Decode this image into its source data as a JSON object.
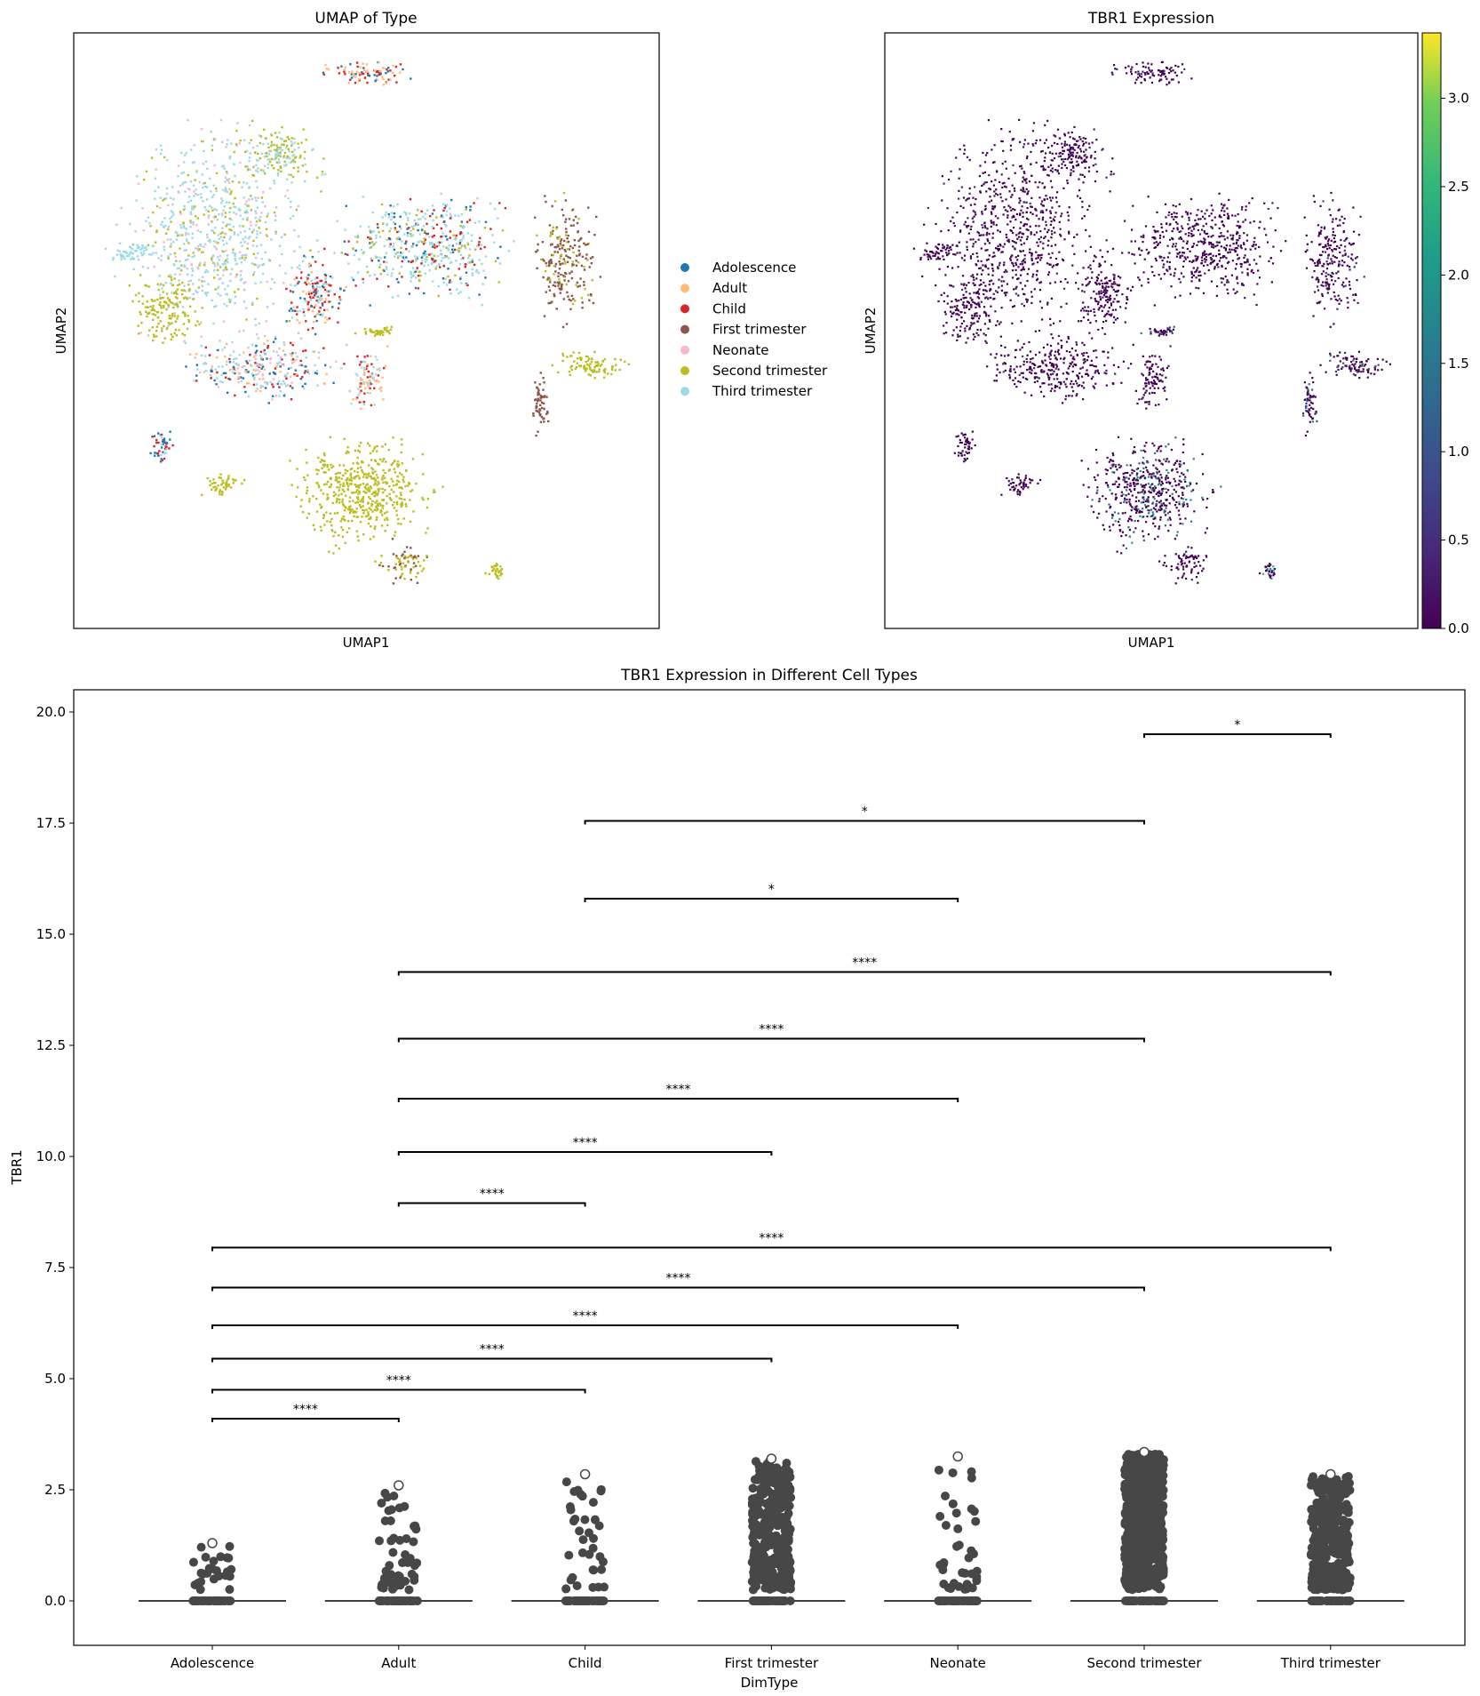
{
  "umap_type": {
    "title": "UMAP of Type",
    "xlabel": "UMAP1",
    "ylabel": "UMAP2",
    "legend": [
      {
        "label": "Adolescence",
        "color": "#1f77b4"
      },
      {
        "label": "Adult",
        "color": "#ffbb78"
      },
      {
        "label": "Child",
        "color": "#d62728"
      },
      {
        "label": "First trimester",
        "color": "#8c564b"
      },
      {
        "label": "Neonate",
        "color": "#f7b6d2"
      },
      {
        "label": "Second trimester",
        "color": "#bcbd22"
      },
      {
        "label": "Third trimester",
        "color": "#9edae5"
      }
    ]
  },
  "umap_expr": {
    "title": "TBR1 Expression",
    "xlabel": "UMAP1",
    "ylabel": "UMAP2",
    "colorbar": {
      "min": 0,
      "max": 3.37,
      "ticks": [
        "0.0",
        "0.5",
        "1.0",
        "1.5",
        "2.0",
        "2.5",
        "3.0"
      ],
      "tick_values": [
        0,
        0.5,
        1,
        1.5,
        2,
        2.5,
        3
      ]
    }
  },
  "chart_data": {
    "type": "box",
    "title": "TBR1 Expression in Different Cell Types",
    "xlabel": "DimType",
    "ylabel": "TBR1",
    "ylim": [
      -1,
      20.5
    ],
    "yticks": [
      "0.0",
      "2.5",
      "5.0",
      "7.5",
      "10.0",
      "12.5",
      "15.0",
      "17.5",
      "20.0"
    ],
    "ytick_values": [
      0,
      2.5,
      5,
      7.5,
      10,
      12.5,
      15,
      17.5,
      20
    ],
    "categories": [
      "Adolescence",
      "Adult",
      "Child",
      "First trimester",
      "Neonate",
      "Second trimester",
      "Third trimester"
    ],
    "median": [
      0,
      0,
      0,
      0,
      0,
      0,
      0
    ],
    "max": [
      1.3,
      2.6,
      2.85,
      3.2,
      3.25,
      3.35,
      2.85
    ],
    "brackets": [
      {
        "from": 0,
        "to": 1,
        "y": 4.1,
        "label": "****"
      },
      {
        "from": 0,
        "to": 2,
        "y": 4.75,
        "label": "****"
      },
      {
        "from": 0,
        "to": 3,
        "y": 5.45,
        "label": "****"
      },
      {
        "from": 0,
        "to": 4,
        "y": 6.2,
        "label": "****"
      },
      {
        "from": 0,
        "to": 5,
        "y": 7.05,
        "label": "****"
      },
      {
        "from": 0,
        "to": 6,
        "y": 7.95,
        "label": "****"
      },
      {
        "from": 1,
        "to": 2,
        "y": 8.95,
        "label": "****"
      },
      {
        "from": 1,
        "to": 3,
        "y": 10.1,
        "label": "****"
      },
      {
        "from": 1,
        "to": 4,
        "y": 11.3,
        "label": "****"
      },
      {
        "from": 1,
        "to": 5,
        "y": 12.65,
        "label": "****"
      },
      {
        "from": 1,
        "to": 6,
        "y": 14.15,
        "label": "****"
      },
      {
        "from": 2,
        "to": 4,
        "y": 15.8,
        "label": "*"
      },
      {
        "from": 2,
        "to": 5,
        "y": 17.55,
        "label": "*"
      },
      {
        "from": 5,
        "to": 6,
        "y": 19.5,
        "label": "*"
      }
    ]
  }
}
